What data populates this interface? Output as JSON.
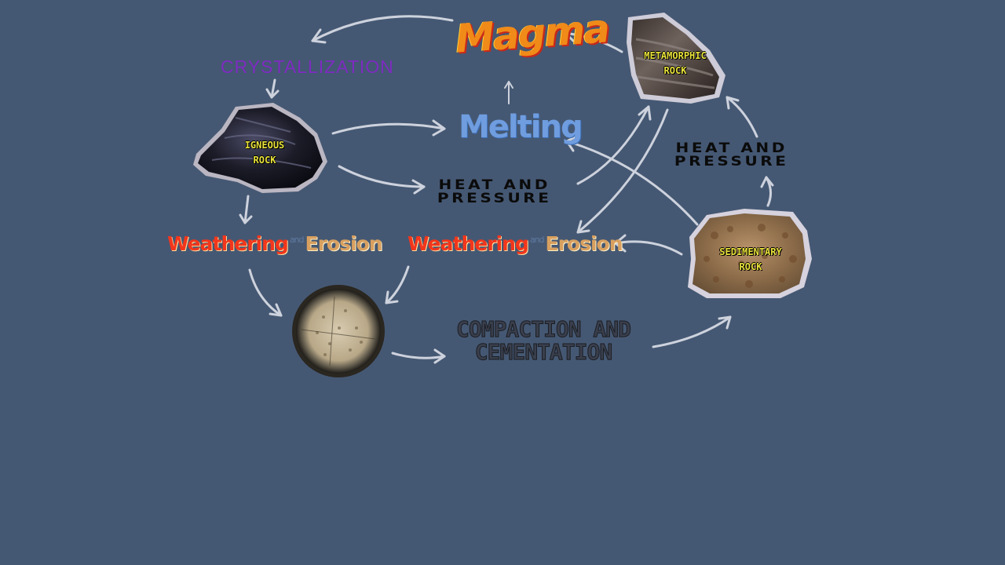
{
  "cycle_labels": {
    "magma": "Magma",
    "crystallization": "CRYSTALLIZATION",
    "melting": "Melting",
    "heat_pressure_1_line1": "HEAT AND",
    "heat_pressure_1_line2": "PRESSURE",
    "heat_pressure_2_line1": "HEAT AND",
    "heat_pressure_2_line2": "PRESSURE",
    "weathering_1": "Weathering",
    "and_1": "and",
    "erosion_1": "Erosion",
    "weathering_2": "Weathering",
    "and_2": "and",
    "erosion_2": "Erosion",
    "compaction_line1": "COMPACTION AND",
    "compaction_line2": "CEMENTATION"
  },
  "rocks": {
    "igneous_line1": "IGNEOUS",
    "igneous_line2": "ROCK",
    "metamorphic_line1": "METAMORPHIC",
    "metamorphic_line2": "ROCK",
    "sedimentary_line1": "SEDIMENTARY",
    "sedimentary_line2": "ROCK"
  },
  "colors": {
    "background": "#455873",
    "arrow": "#d9dde6",
    "crystallization": "#7d2bc0",
    "melting": "#6f9ddf",
    "weathering": "#f2361c",
    "erosion": "#d8a060",
    "rock_label": "#e8e23a"
  }
}
